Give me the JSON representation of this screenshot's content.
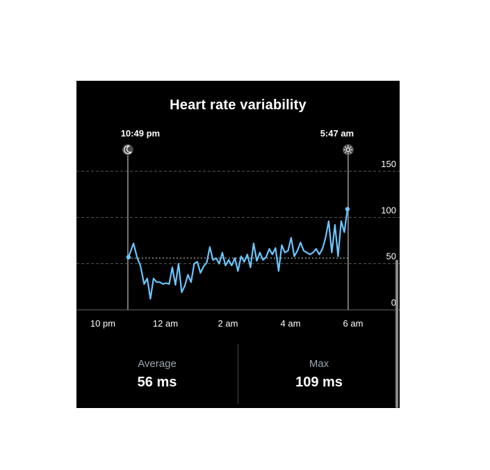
{
  "title": "Heart rate variability",
  "sleep_markers": {
    "start_label": "10:49 pm",
    "end_label": "5:47 am",
    "start_icon": "moon-icon",
    "end_icon": "sun-icon"
  },
  "stats": {
    "average_label": "Average",
    "average_value": "56 ms",
    "max_label": "Max",
    "max_value": "109 ms"
  },
  "colors": {
    "background": "#000000",
    "line": "#6cc6ff",
    "grid": "#5a5a5a",
    "marker": "#777777",
    "stat_label": "#9aa4b2"
  },
  "chart_data": {
    "type": "line",
    "title": "Heart rate variability",
    "x_unit": "hours",
    "xlim": [
      21.62,
      6.47
    ],
    "xticks": [
      {
        "value": 22,
        "label": "10 pm"
      },
      {
        "value": 24,
        "label": "12 am"
      },
      {
        "value": 26,
        "label": "2 am"
      },
      {
        "value": 28,
        "label": "4 am"
      },
      {
        "value": 30,
        "label": "6 am"
      }
    ],
    "ylim": [
      0,
      150
    ],
    "yticks": [
      150,
      100,
      50,
      0
    ],
    "grid": true,
    "average": 56,
    "sleep_start": "10:49 pm",
    "sleep_end": "5:47 am",
    "series": [
      {
        "x": [
          22.82,
          22.98,
          23.1,
          23.2,
          23.32,
          23.42,
          23.52,
          23.62,
          23.72,
          23.82,
          23.92,
          24.02,
          24.12,
          24.22,
          24.32,
          24.42,
          24.52,
          24.62,
          24.72,
          24.82,
          24.92,
          25.02,
          25.12,
          25.22,
          25.32,
          25.42,
          25.52,
          25.62,
          25.72,
          25.82,
          25.92,
          26.02,
          26.12,
          26.22,
          26.32,
          26.42,
          26.52,
          26.62,
          26.72,
          26.82,
          26.92,
          27.02,
          27.12,
          27.22,
          27.32,
          27.42,
          27.52,
          27.62,
          27.72,
          27.82,
          27.92,
          28.02,
          28.12,
          28.22,
          28.32,
          28.42,
          28.52,
          28.62,
          28.72,
          28.82,
          28.92,
          29.02,
          29.12,
          29.22,
          29.32,
          29.42,
          29.52,
          29.62,
          29.72,
          29.82
        ],
        "values": [
          57,
          72,
          56,
          48,
          28,
          34,
          12,
          34,
          30,
          30,
          28,
          29,
          28,
          46,
          27,
          50,
          19,
          26,
          38,
          30,
          50,
          52,
          40,
          47,
          51,
          68,
          54,
          56,
          50,
          62,
          48,
          54,
          48,
          56,
          42,
          58,
          52,
          60,
          46,
          72,
          53,
          62,
          54,
          57,
          66,
          60,
          67,
          42,
          70,
          62,
          64,
          78,
          58,
          64,
          73,
          64,
          62,
          60,
          62,
          66,
          60,
          66,
          78,
          96,
          62,
          92,
          58,
          96,
          84,
          109
        ]
      }
    ]
  }
}
